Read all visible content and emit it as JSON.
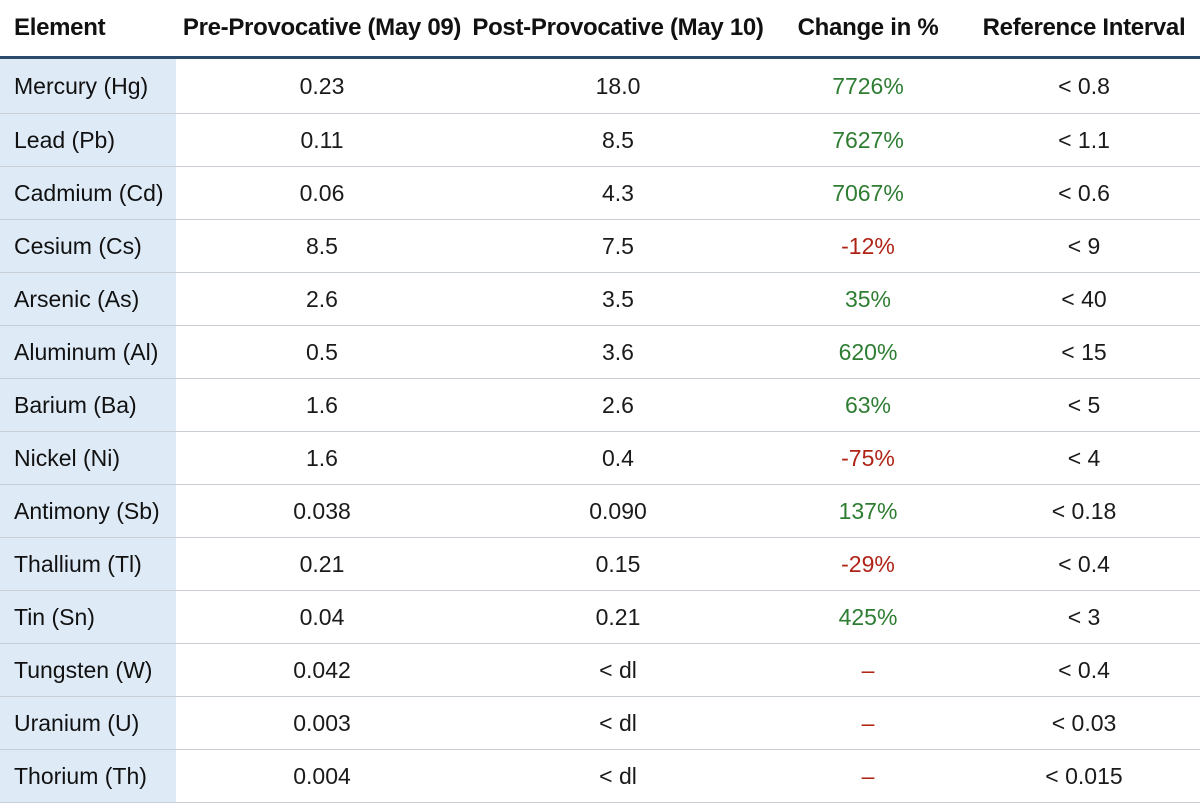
{
  "table": {
    "headers": [
      "Element",
      "Pre-Provocative (May 09)",
      "Post-Provocative (May 10)",
      "Change in %",
      "Reference Interval"
    ],
    "rows": [
      {
        "element": "Mercury (Hg)",
        "pre": "0.23",
        "post": "18.0",
        "change": "7726%",
        "trend": "up",
        "ref": "< 0.8"
      },
      {
        "element": "Lead (Pb)",
        "pre": "0.11",
        "post": "8.5",
        "change": "7627%",
        "trend": "up",
        "ref": "< 1.1"
      },
      {
        "element": "Cadmium (Cd)",
        "pre": "0.06",
        "post": "4.3",
        "change": "7067%",
        "trend": "up",
        "ref": "< 0.6"
      },
      {
        "element": "Cesium (Cs)",
        "pre": "8.5",
        "post": "7.5",
        "change": "-12%",
        "trend": "down",
        "ref": "< 9"
      },
      {
        "element": "Arsenic (As)",
        "pre": "2.6",
        "post": "3.5",
        "change": "35%",
        "trend": "up",
        "ref": "< 40"
      },
      {
        "element": "Aluminum (Al)",
        "pre": "0.5",
        "post": "3.6",
        "change": "620%",
        "trend": "up",
        "ref": "< 15"
      },
      {
        "element": "Barium (Ba)",
        "pre": "1.6",
        "post": "2.6",
        "change": "63%",
        "trend": "up",
        "ref": "< 5"
      },
      {
        "element": "Nickel (Ni)",
        "pre": "1.6",
        "post": "0.4",
        "change": "-75%",
        "trend": "down",
        "ref": "< 4"
      },
      {
        "element": "Antimony (Sb)",
        "pre": "0.038",
        "post": "0.090",
        "change": "137%",
        "trend": "up",
        "ref": "< 0.18"
      },
      {
        "element": "Thallium (Tl)",
        "pre": "0.21",
        "post": "0.15",
        "change": "-29%",
        "trend": "down",
        "ref": "< 0.4"
      },
      {
        "element": "Tin (Sn)",
        "pre": "0.04",
        "post": "0.21",
        "change": "425%",
        "trend": "up",
        "ref": "< 3"
      },
      {
        "element": "Tungsten (W)",
        "pre": "0.042",
        "post": "< dl",
        "change": "–",
        "trend": "down",
        "ref": "< 0.4"
      },
      {
        "element": "Uranium (U)",
        "pre": "0.003",
        "post": "< dl",
        "change": "–",
        "trend": "down",
        "ref": "< 0.03"
      },
      {
        "element": "Thorium (Th)",
        "pre": "0.004",
        "post": "< dl",
        "change": "–",
        "trend": "down",
        "ref": "< 0.015"
      }
    ]
  },
  "colors": {
    "header_rule": "#2c4a6b",
    "element_column_bg": "#deebf7",
    "positive_change": "#2e7d32",
    "negative_change": "#b02418",
    "row_divider": "#c9ced4"
  }
}
